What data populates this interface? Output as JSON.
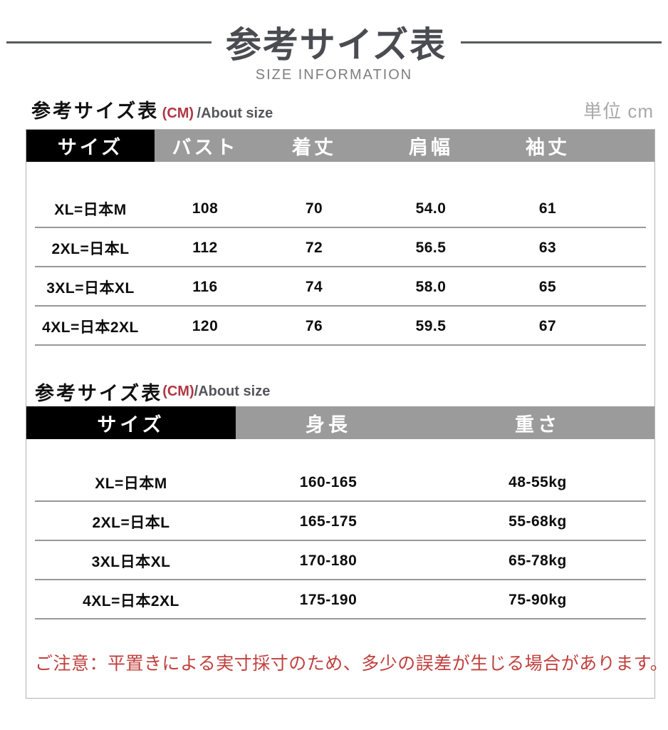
{
  "title": {
    "main": "参考サイズ表",
    "subtitle": "SIZE INFORMATION"
  },
  "unit_label": "単位 cm",
  "colors": {
    "header_black": "#000000",
    "header_gray": "#9b9b9b",
    "accent_red": "#b03744",
    "note_red": "#c0403d",
    "title_gray": "#4b4c51"
  },
  "section1": {
    "heading": "参考サイズ表",
    "heading_cm": "(CM)",
    "heading_about": "/About size",
    "table": {
      "columns": [
        "サイズ",
        "バスト",
        "着丈",
        "肩幅",
        "袖丈"
      ],
      "rows": [
        [
          "XL=日本M",
          "108",
          "70",
          "54.0",
          "61"
        ],
        [
          "2XL=日本L",
          "112",
          "72",
          "56.5",
          "63"
        ],
        [
          "3XL=日本XL",
          "116",
          "74",
          "58.0",
          "65"
        ],
        [
          "4XL=日本2XL",
          "120",
          "76",
          "59.5",
          "67"
        ]
      ]
    }
  },
  "section2": {
    "heading": "参考サイズ表",
    "heading_cm": "(CM)",
    "heading_about": "/About size",
    "table": {
      "columns": [
        "サイズ",
        "身長",
        "重さ"
      ],
      "rows": [
        [
          "XL=日本M",
          "160-165",
          "48-55kg"
        ],
        [
          "2XL=日本L",
          "165-175",
          "55-68kg"
        ],
        [
          "3XL日本XL",
          "170-180",
          "65-78kg"
        ],
        [
          "4XL=日本2XL",
          "175-190",
          "75-90kg"
        ]
      ]
    }
  },
  "note": "ご注意：平置きによる実寸採寸のため、多少の誤差が生じる場合があります。"
}
